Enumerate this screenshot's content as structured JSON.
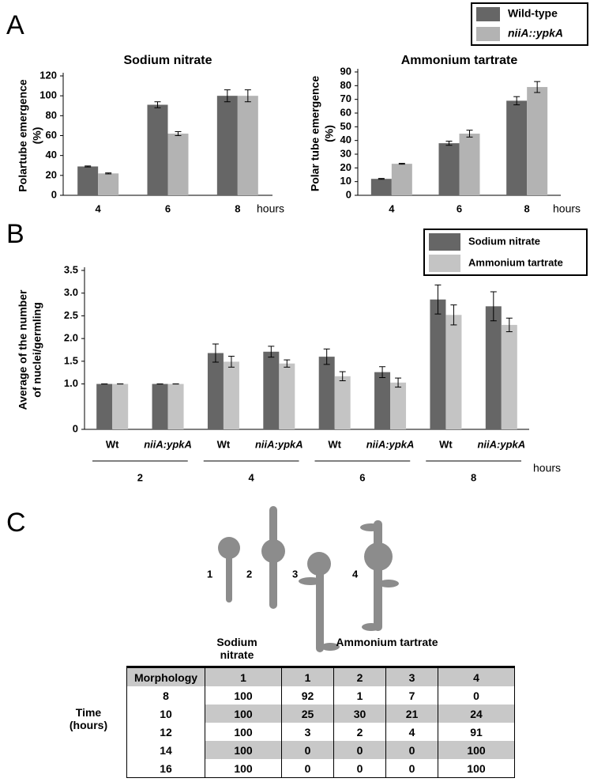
{
  "panel_labels": [
    "A",
    "B",
    "C"
  ],
  "chart_data": [
    {
      "type": "bar",
      "title": "Sodium nitrate",
      "y_label": [
        "Polartube emergence",
        "(%)"
      ],
      "x_label": "hours",
      "categories": [
        "4",
        "6",
        "8"
      ],
      "ylim": [
        0,
        120
      ],
      "yticks": [
        0,
        20,
        40,
        60,
        80,
        100,
        120
      ],
      "legend": "upper right",
      "series": [
        {
          "name": "Wild-type",
          "color": "#666666",
          "values": [
            29,
            91,
            100
          ],
          "errors": [
            0.5,
            3,
            6
          ]
        },
        {
          "name": "niiA::ypkA",
          "color": "#b3b3b3",
          "values": [
            22,
            62,
            100
          ],
          "errors": [
            0.5,
            2,
            6
          ]
        }
      ]
    },
    {
      "type": "bar",
      "title": "Ammonium tartrate",
      "y_label": [
        "Polar tube emergence",
        "(%)"
      ],
      "x_label": "hours",
      "categories": [
        "4",
        "6",
        "8"
      ],
      "ylim": [
        0,
        90
      ],
      "yticks": [
        0,
        10,
        20,
        30,
        40,
        50,
        60,
        70,
        80,
        90
      ],
      "series": [
        {
          "color": "#666666",
          "values": [
            12,
            38,
            69
          ],
          "errors": [
            0.3,
            1.5,
            3
          ]
        },
        {
          "color": "#b3b3b3",
          "values": [
            23,
            45,
            79
          ],
          "errors": [
            0.3,
            2.5,
            4
          ]
        }
      ]
    },
    {
      "type": "bar",
      "y_label": [
        "Average of the number",
        "of nuclei/germling"
      ],
      "x_label": "hours",
      "categories": [
        "Wt",
        "niiA:ypkA",
        "Wt",
        "niiA:ypkA",
        "Wt",
        "niiA:ypkA",
        "Wt",
        "niiA:ypkA"
      ],
      "groups": [
        "2",
        "4",
        "6",
        "8"
      ],
      "legend": "upper right",
      "ylim": [
        0,
        3.5
      ],
      "yticks": [
        0,
        {
          "value": 1,
          "label": "1.0"
        },
        1.5,
        {
          "value": 2,
          "label": "2.0"
        },
        2.5,
        {
          "value": 3,
          "label": "3.0"
        },
        3.5
      ],
      "series": [
        {
          "name": "Sodium nitrate",
          "color": "#666666",
          "values": [
            1.0,
            1.0,
            1.68,
            1.71,
            1.6,
            1.26,
            2.86,
            2.71
          ],
          "errors": [
            0,
            0,
            0.2,
            0.12,
            0.17,
            0.12,
            0.32,
            0.32
          ]
        },
        {
          "name": "Ammonium tartrate",
          "color": "#c4c4c4",
          "values": [
            1.0,
            1.0,
            1.49,
            1.45,
            1.17,
            1.03,
            2.52,
            2.3
          ],
          "errors": [
            0,
            0,
            0.12,
            0.08,
            0.1,
            0.1,
            0.22,
            0.15
          ]
        }
      ]
    }
  ],
  "panel_c": {
    "morphologies": [
      "1",
      "2",
      "3",
      "4"
    ],
    "conditions": [
      "Sodium nitrate",
      "Ammonium tartrate"
    ],
    "table": {
      "row_label": "Time (hours)",
      "header": [
        "Morphology",
        "1",
        "1",
        "2",
        "3",
        "4"
      ],
      "rows": [
        [
          8,
          100,
          92,
          1,
          7,
          0
        ],
        [
          10,
          100,
          25,
          30,
          21,
          24
        ],
        [
          12,
          100,
          3,
          2,
          4,
          91
        ],
        [
          14,
          100,
          0,
          0,
          0,
          100
        ],
        [
          16,
          100,
          0,
          0,
          0,
          100
        ]
      ]
    }
  }
}
